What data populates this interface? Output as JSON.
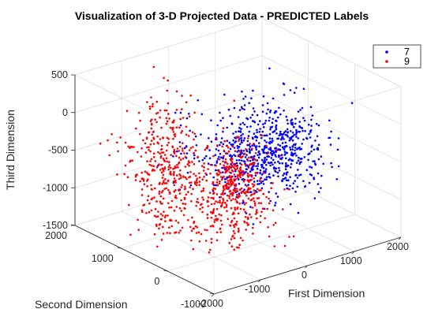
{
  "chart_data": {
    "type": "scatter",
    "title": "Visualization of 3-D Projected Data - PREDICTED Labels",
    "xlabel": "First Dimension",
    "ylabel": "Second Dimension",
    "zlabel": "Third Dimension",
    "xlim": [
      -2000,
      2000
    ],
    "ylim": [
      -1000,
      2000
    ],
    "zlim": [
      -1500,
      500
    ],
    "x_ticks": [
      "-2000",
      "-1000",
      "0",
      "1000",
      "2000"
    ],
    "y_ticks": [
      "-1000",
      "0",
      "1000",
      "2000"
    ],
    "z_ticks": [
      "-1500",
      "-1000",
      "-500",
      "0",
      "500"
    ],
    "grid": true,
    "legend_position": "top-right",
    "series": [
      {
        "name": "7",
        "color": "#0000ff",
        "clusters": [
          {
            "center": [
              200,
              300,
              -350
            ],
            "spread": [
              650,
              330,
              300
            ],
            "count": 430
          },
          {
            "center": [
              500,
              150,
              -480
            ],
            "spread": [
              420,
              250,
              260
            ],
            "count": 300
          }
        ]
      },
      {
        "name": "9",
        "color": "#ff0000",
        "clusters": [
          {
            "center": [
              -1050,
              950,
              -600
            ],
            "spread": [
              300,
              350,
              450
            ],
            "count": 420
          },
          {
            "center": [
              -500,
              100,
              -850
            ],
            "spread": [
              340,
              260,
              330
            ],
            "count": 340
          },
          {
            "center": [
              -300,
              250,
              -520
            ],
            "spread": [
              180,
              140,
              160
            ],
            "count": 90
          }
        ]
      }
    ]
  }
}
